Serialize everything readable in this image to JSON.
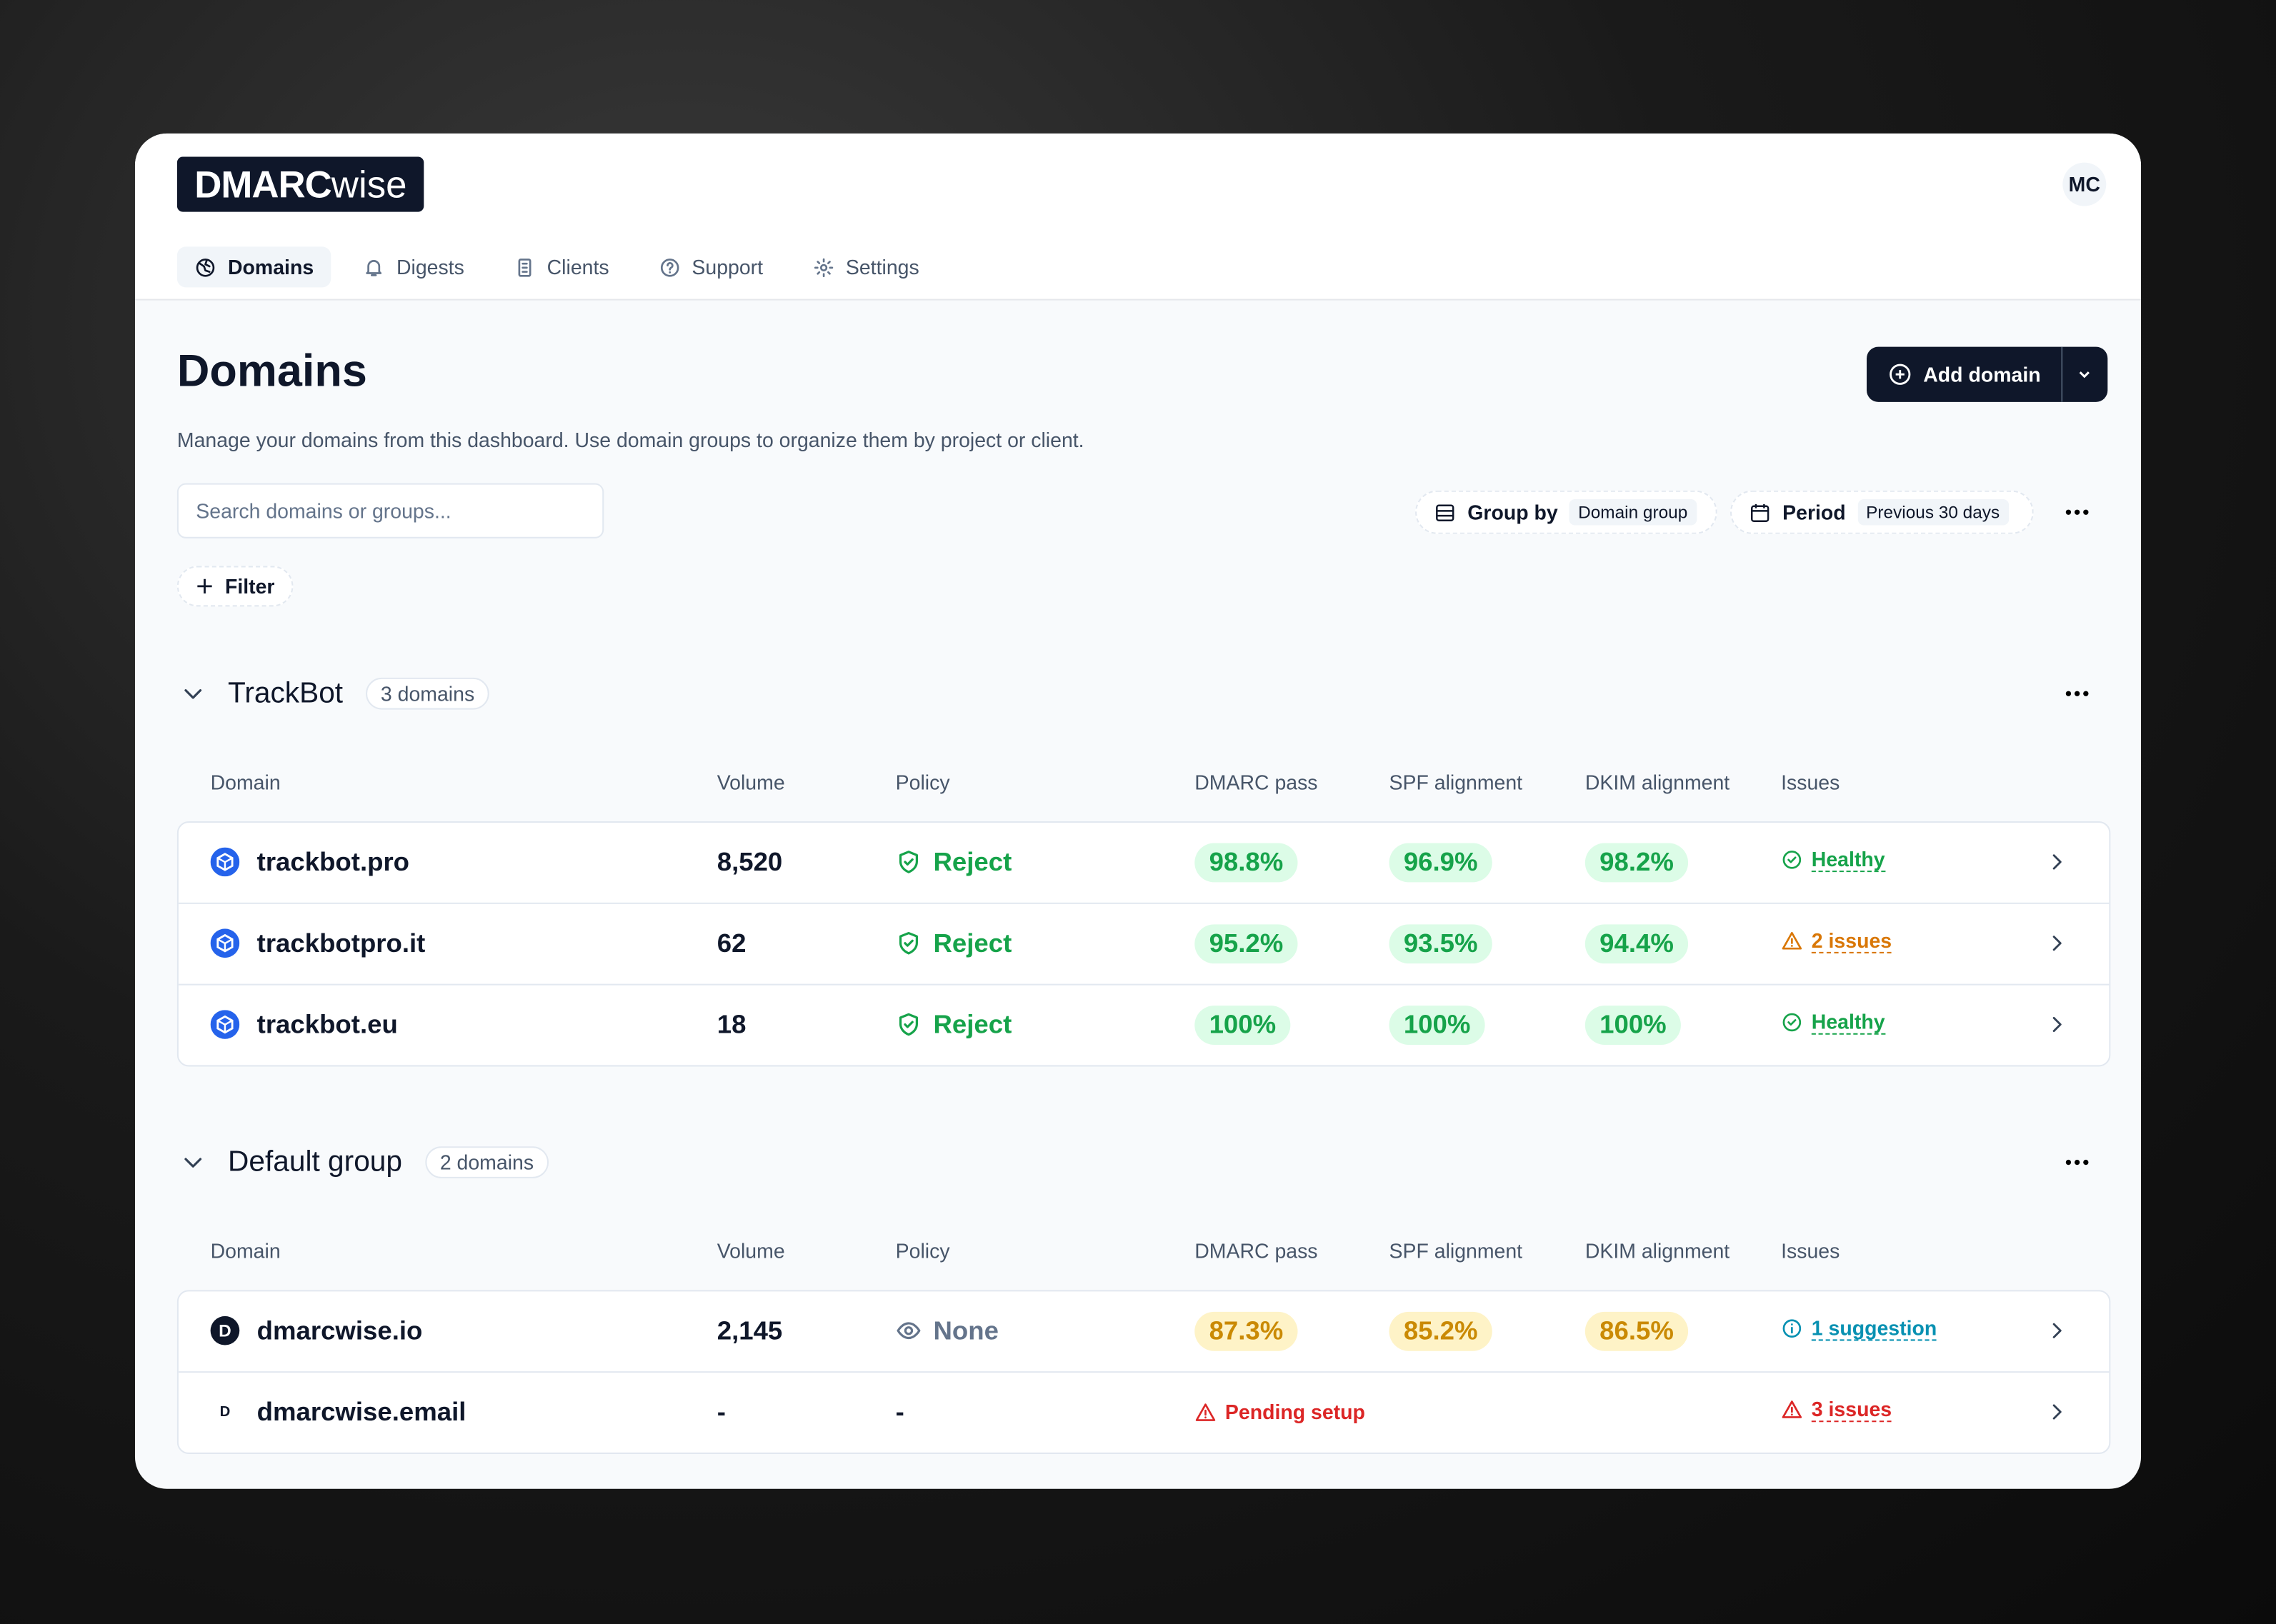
{
  "logo": {
    "bold": "DMARC",
    "light": "wise"
  },
  "user_initials": "MC",
  "nav": [
    {
      "label": "Domains",
      "active": true
    },
    {
      "label": "Digests"
    },
    {
      "label": "Clients"
    },
    {
      "label": "Support"
    },
    {
      "label": "Settings"
    }
  ],
  "header": {
    "title": "Domains",
    "description": "Manage your domains from this dashboard. Use domain groups to organize them by project or client.",
    "add_button": "Add domain"
  },
  "toolbar": {
    "search_placeholder": "Search domains or groups...",
    "group_by_label": "Group by",
    "group_by_value": "Domain group",
    "period_label": "Period",
    "period_value": "Previous 30 days",
    "filter": "Filter"
  },
  "columns": [
    "Domain",
    "Volume",
    "Policy",
    "DMARC pass",
    "SPF alignment",
    "DKIM alignment",
    "Issues"
  ],
  "groups": [
    {
      "name": "TrackBot",
      "count": "3 domains",
      "rows": [
        {
          "domain": "trackbot.pro",
          "volume": "8,520",
          "policy": "Reject",
          "policy_color": "#16a34a",
          "dmarc": "98.8%",
          "spf": "96.9%",
          "dkim": "98.2%",
          "rate_color": "#16a34a",
          "rate_bg": "#dcfce7",
          "issues": "Healthy",
          "issues_color": "#16a34a"
        },
        {
          "domain": "trackbotpro.it",
          "volume": "62",
          "policy": "Reject",
          "policy_color": "#16a34a",
          "dmarc": "95.2%",
          "spf": "93.5%",
          "dkim": "94.4%",
          "rate_color": "#16a34a",
          "rate_bg": "#dcfce7",
          "issues": "2 issues",
          "issues_color": "#d97706"
        },
        {
          "domain": "trackbot.eu",
          "volume": "18",
          "policy": "Reject",
          "policy_color": "#16a34a",
          "dmarc": "100%",
          "spf": "100%",
          "dkim": "100%",
          "rate_color": "#16a34a",
          "rate_bg": "#dcfce7",
          "issues": "Healthy",
          "issues_color": "#16a34a"
        }
      ]
    },
    {
      "name": "Default group",
      "count": "2 domains",
      "rows": [
        {
          "domain": "dmarcwise.io",
          "favicon": "D",
          "volume": "2,145",
          "policy": "None",
          "policy_color": "#64748b",
          "dmarc": "87.3%",
          "spf": "85.2%",
          "dkim": "86.5%",
          "rate_color": "#ca8a04",
          "rate_bg": "#fef3c7",
          "issues": "1 suggestion",
          "issues_color": "#0891b2"
        },
        {
          "domain": "dmarcwise.email",
          "favicon": "D",
          "volume": "-",
          "policy": "-",
          "policy_color": "#0f172a",
          "dmarc": "Pending setup",
          "spf": null,
          "dkim": null,
          "rate_color": "#dc2626",
          "issues": "3 issues",
          "issues_color": "#dc2626"
        }
      ]
    }
  ]
}
